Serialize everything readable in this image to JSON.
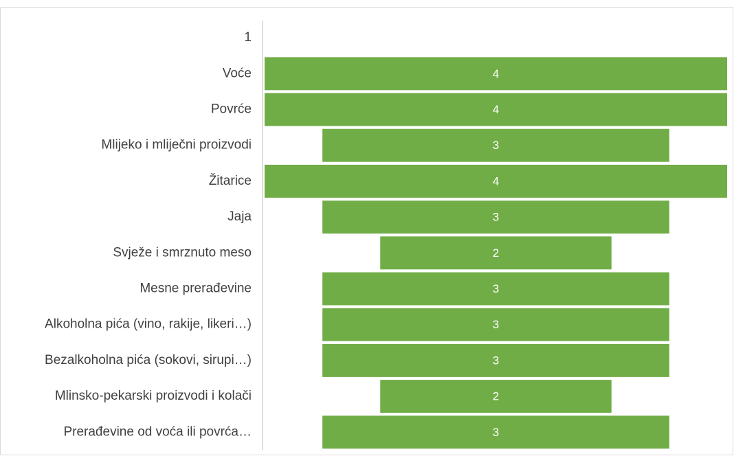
{
  "chart_data": {
    "type": "funnel",
    "categories": [
      "1",
      "Voće",
      "Povrće",
      "Mlijeko i mliječni proizvodi",
      "Žitarice",
      "Jaja",
      "Svježe i smrznuto meso",
      "Mesne prerađevine",
      "Alkoholna pića (vino, rakije, likeri…)",
      "Bezalkoholna pića (sokovi, sirupi…)",
      "Mlinsko-pekarski proizvodi i kolači",
      "Prerađevine od voća ili povrća…"
    ],
    "values": [
      null,
      4,
      4,
      3,
      4,
      3,
      2,
      3,
      3,
      3,
      2,
      3
    ],
    "color": "#70ad47"
  }
}
